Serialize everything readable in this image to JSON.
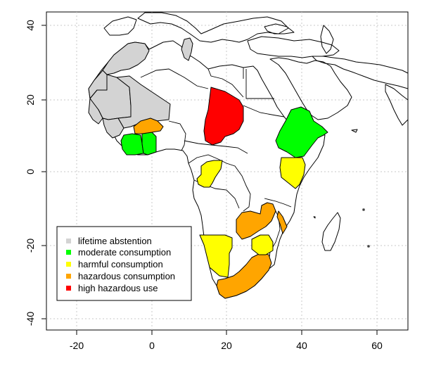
{
  "map": {
    "axes": {
      "x_ticks": [
        "-20",
        "0",
        "20",
        "40",
        "60"
      ],
      "y_ticks": [
        "40",
        "20",
        "0",
        "-20",
        "-40"
      ]
    },
    "legend": [
      {
        "label": "lifetime abstention",
        "color": "#d3d3d3"
      },
      {
        "label": "moderate consumption",
        "color": "#00ff00"
      },
      {
        "label": "harmful consumption",
        "color": "#ffff00"
      },
      {
        "label": "hazardous consumption",
        "color": "#ffa500"
      },
      {
        "label": "high hazardous use",
        "color": "#ff0000"
      }
    ],
    "colors": {
      "abstention": "#d3d3d3",
      "moderate": "#00ff00",
      "harmful": "#ffff00",
      "hazardous": "#ffa500",
      "high_hazardous": "#ff0000"
    }
  }
}
